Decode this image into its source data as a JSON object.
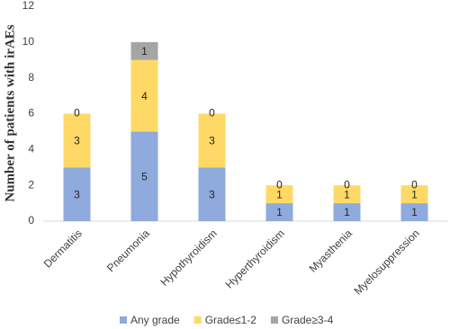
{
  "chart_data": {
    "type": "stacked_bar",
    "y_label": "Number of patients with irAEs",
    "categories": [
      "Dermatitis",
      "Pneumonia",
      "Hypothyroidism",
      "Hyperthyroidism",
      "Myasthenia",
      "Myelosuppression"
    ],
    "series": [
      {
        "name": "Any grade",
        "color": "#8faadc",
        "values": [
          3,
          5,
          3,
          1,
          1,
          1
        ]
      },
      {
        "name": "Grade≤1-2",
        "color": "#ffd966",
        "values": [
          3,
          4,
          3,
          1,
          1,
          1
        ]
      },
      {
        "name": "Grade≥3-4",
        "color": "#a5a5a5",
        "values": [
          0,
          1,
          0,
          0,
          0,
          0
        ]
      }
    ],
    "ylim": [
      0,
      12
    ],
    "yticks": [
      0,
      2,
      4,
      6,
      8,
      10,
      12
    ],
    "grid": false,
    "legend": "bottom"
  }
}
